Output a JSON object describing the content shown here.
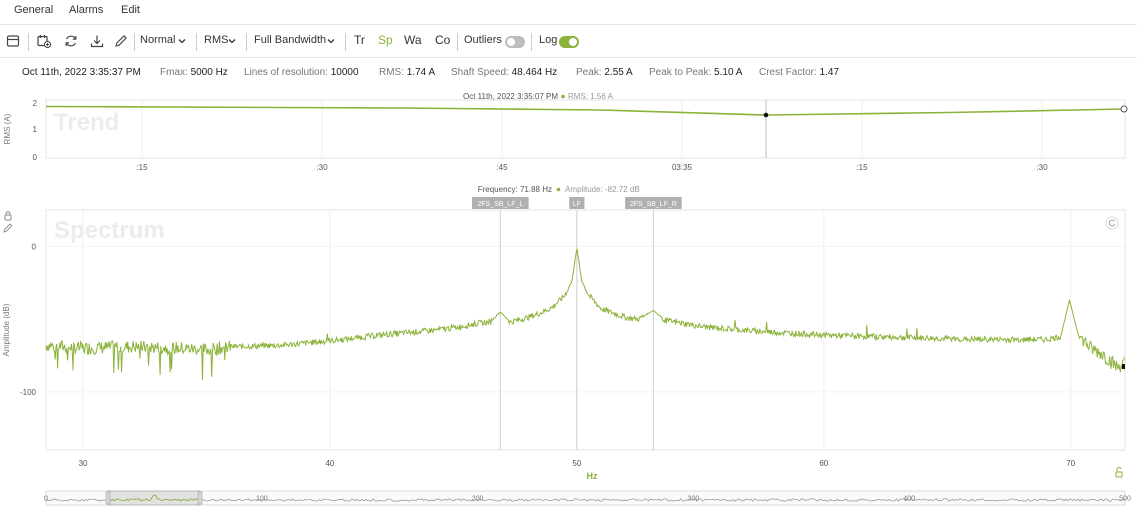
{
  "menu": {
    "general": "General",
    "alarms": "Alarms",
    "edit": "Edit"
  },
  "toolbar": {
    "mode": "Normal",
    "measure": "RMS",
    "bandwidth": "Full Bandwidth",
    "tr": "Tr",
    "sp": "Sp",
    "wa": "Wa",
    "co": "Co",
    "outliers": "Outliers",
    "outliers_on": false,
    "log": "Log",
    "log_on": true,
    "accent": "#8bb33a"
  },
  "info": {
    "timestamp": "Oct 11th, 2022 3:35:37 PM",
    "fmax_label": "Fmax:",
    "fmax": "5000 Hz",
    "lines_label": "Lines of resolution:",
    "lines": "10000",
    "rms_label": "RMS:",
    "rms": "1.74 A",
    "shaft_label": "Shaft Speed:",
    "shaft": "48.464 Hz",
    "peak_label": "Peak:",
    "peak": "2.55 A",
    "p2p_label": "Peak to Peak:",
    "p2p": "5.10 A",
    "crest_label": "Crest Factor:",
    "crest": "1.47"
  },
  "trend": {
    "watermark": "Trend",
    "tooltip_time": "Oct 11th, 2022 3:35:07 PM",
    "tooltip_value": "RMS: 1.56 A",
    "ylabel": "RMS (A)",
    "yticks": [
      "2",
      "1",
      "0"
    ],
    "xticks": [
      ":15",
      ":30",
      ":45",
      "03:35",
      ":15",
      ":30"
    ]
  },
  "chart_data": {
    "type": "line",
    "title": "Spectrum",
    "xlabel": "Hz",
    "ylabel": "Amplitude (dB)",
    "xlim": [
      28.5,
      72.2
    ],
    "ylim": [
      -140,
      25
    ],
    "xticks": [
      "30",
      "40",
      "50",
      "60",
      "70"
    ],
    "yticks": [
      "0",
      "-100"
    ],
    "tooltip_freq": "Frequency: 71.88 Hz",
    "tooltip_amp": "Amplitude: -82.72 dB",
    "markers": [
      {
        "label": "2FS_SB_LF_L",
        "x": 46.9
      },
      {
        "label": "LF",
        "x": 50.0
      },
      {
        "label": "2FS_SB_LF_R",
        "x": 53.1
      }
    ],
    "series": [
      {
        "x": [
          28.5,
          30,
          32,
          34,
          35,
          36,
          38,
          40,
          42,
          44,
          45,
          46,
          46.5,
          46.9,
          47.3,
          48,
          48.5,
          49,
          49.5,
          49.8,
          50,
          50.2,
          50.5,
          51,
          51.5,
          52,
          52.5,
          53.1,
          53.6,
          55,
          57,
          60,
          62,
          64,
          66,
          68,
          69,
          69.6,
          69.95,
          70.3,
          70.8,
          71.3,
          71.88,
          72.2
        ],
        "y": [
          -68,
          -70,
          -69,
          -70,
          -71,
          -69,
          -68,
          -65,
          -61,
          -58,
          -56,
          -53,
          -52,
          -45,
          -52,
          -49,
          -46,
          -42,
          -34,
          -24,
          -1,
          -24,
          -34,
          -43,
          -46,
          -49,
          -50,
          -44,
          -51,
          -55,
          -58,
          -61,
          -62,
          -63,
          -64,
          -64,
          -64,
          -62,
          -37,
          -60,
          -70,
          -74,
          -83,
          -80
        ]
      }
    ]
  },
  "navigator": {
    "ticks": [
      "0",
      "100",
      "200",
      "300",
      "400",
      "500"
    ]
  }
}
